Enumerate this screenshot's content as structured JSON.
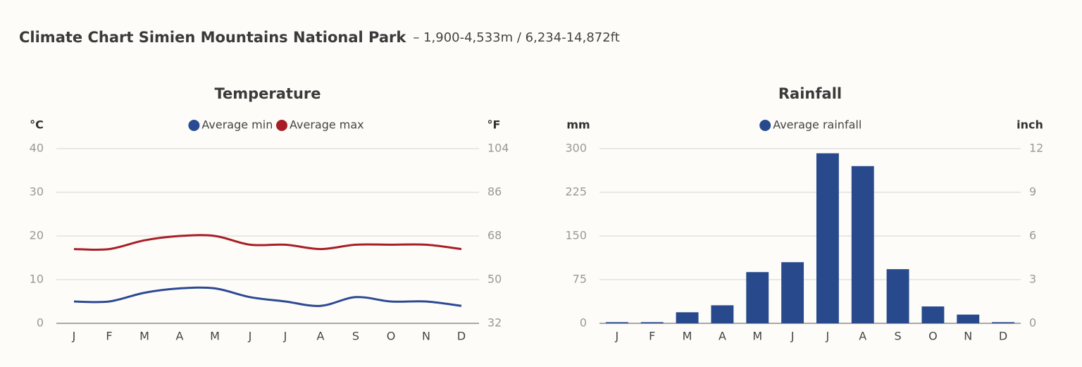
{
  "header": {
    "title": "Climate Chart Simien Mountains National Park",
    "subtitle": "– 1,900-4,533m / 6,234-14,872ft"
  },
  "chart_data": [
    {
      "type": "line",
      "title": "Temperature",
      "y_label": "°C",
      "y2_label": "°F",
      "categories": [
        "J",
        "F",
        "M",
        "A",
        "M",
        "J",
        "J",
        "A",
        "S",
        "O",
        "N",
        "D"
      ],
      "series": [
        {
          "name": "Average min",
          "color": "#2b4a94",
          "values": [
            5,
            5,
            7,
            8,
            8,
            6,
            5,
            4,
            6,
            5,
            5,
            4
          ]
        },
        {
          "name": "Average max",
          "color": "#a81e26",
          "values": [
            17,
            17,
            19,
            20,
            20,
            18,
            18,
            17,
            18,
            18,
            18,
            17
          ]
        }
      ],
      "ylim": [
        0,
        40
      ],
      "yticks": [
        0,
        10,
        20,
        30,
        40
      ],
      "y2lim": [
        32,
        104
      ],
      "y2ticks": [
        32,
        50,
        68,
        86,
        104
      ],
      "grid": true
    },
    {
      "type": "bar",
      "title": "Rainfall",
      "y_label": "mm",
      "y2_label": "inch",
      "categories": [
        "J",
        "F",
        "M",
        "A",
        "M",
        "J",
        "J",
        "A",
        "S",
        "O",
        "N",
        "D"
      ],
      "series": [
        {
          "name": "Average rainfall",
          "color": "#284a8d",
          "values": [
            2,
            2,
            19,
            31,
            88,
            105,
            292,
            270,
            93,
            29,
            15,
            2
          ]
        }
      ],
      "ylim": [
        0,
        300
      ],
      "yticks": [
        0,
        75,
        150,
        225,
        300
      ],
      "y2lim": [
        0,
        12
      ],
      "y2ticks": [
        0,
        3,
        6,
        9,
        12
      ],
      "grid": true
    }
  ]
}
